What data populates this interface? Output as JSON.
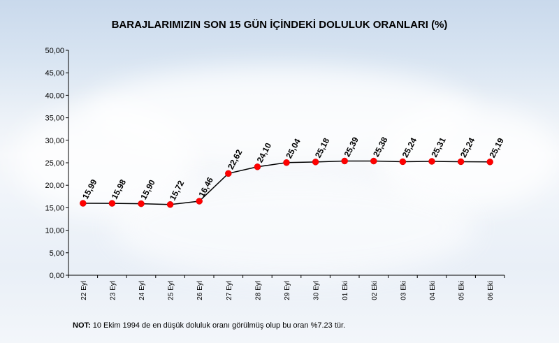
{
  "chart_data": {
    "type": "line",
    "title": "BARAJLARIMIZIN SON 15 GÜN İÇİNDEKİ DOLULUK ORANLARI (%)",
    "categories": [
      "22 Eyl",
      "23 Eyl",
      "24 Eyl",
      "25 Eyl",
      "26 Eyl",
      "27 Eyl",
      "28 Eyl",
      "29 Eyl",
      "30 Eyl",
      "01 Eki",
      "02 Eki",
      "03 Eki",
      "04 Eki",
      "05 Eki",
      "06 Eki"
    ],
    "values": [
      15.99,
      15.98,
      15.9,
      15.72,
      16.46,
      22.62,
      24.1,
      25.04,
      25.18,
      25.39,
      25.38,
      25.24,
      25.31,
      25.24,
      25.19
    ],
    "value_labels": [
      "15,99",
      "15,98",
      "15,90",
      "15,72",
      "16,46",
      "22,62",
      "24,10",
      "25,04",
      "25,18",
      "25,39",
      "25,38",
      "25,24",
      "25,31",
      "25,24",
      "25,19"
    ],
    "y_ticks": [
      "0,00",
      "5,00",
      "10,00",
      "15,00",
      "20,00",
      "25,00",
      "30,00",
      "35,00",
      "40,00",
      "45,00",
      "50,00"
    ],
    "ylim": [
      0,
      50
    ],
    "xlabel": "",
    "ylabel": "",
    "grid": false,
    "legend": "none",
    "line_color": "#000000",
    "marker_color": "#ff0000"
  },
  "note": {
    "label": "NOT:",
    "text": " 10 Ekim  1994  de en düşük doluluk oranı görülmüş olup bu oran %7.23 tür."
  }
}
